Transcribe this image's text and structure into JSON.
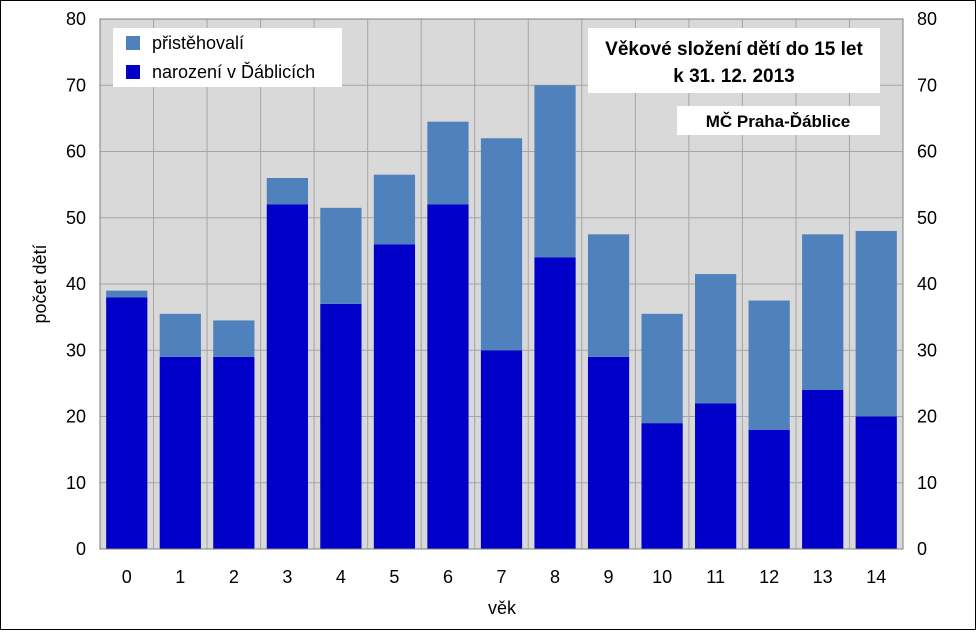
{
  "chart_data": {
    "type": "bar",
    "stacked": true,
    "title": [
      "Věkové složení dětí do 15 let",
      "k 31. 12. 2013"
    ],
    "subtitle": "MČ Praha-Ďáblice",
    "xlabel": "věk",
    "ylabel": "počet dětí",
    "ylim": [
      0,
      80
    ],
    "yticks": [
      "0",
      "10",
      "20",
      "30",
      "40",
      "50",
      "60",
      "70",
      "80"
    ],
    "grid": true,
    "legend_position": "top-left",
    "categories": [
      "0",
      "1",
      "2",
      "3",
      "4",
      "5",
      "6",
      "7",
      "8",
      "9",
      "10",
      "11",
      "12",
      "13",
      "14"
    ],
    "series": [
      {
        "name": "narození v Ďáblicích",
        "color": "#0000c8",
        "values": [
          38,
          29,
          29,
          52,
          37,
          46,
          52,
          30,
          44,
          29,
          19,
          22,
          18,
          24,
          20
        ]
      },
      {
        "name": "přistěhovalí",
        "color": "#4f81bd",
        "values": [
          1,
          6.5,
          5.5,
          4,
          14.5,
          10.5,
          12.5,
          32,
          26,
          18.5,
          16.5,
          19.5,
          19.5,
          23.5,
          28
        ]
      }
    ],
    "legend_order": [
      1,
      0
    ],
    "colors": {
      "plot_bg": "#d9d9d9",
      "gridline": "#a6a6a6",
      "frame": "#000000"
    }
  }
}
